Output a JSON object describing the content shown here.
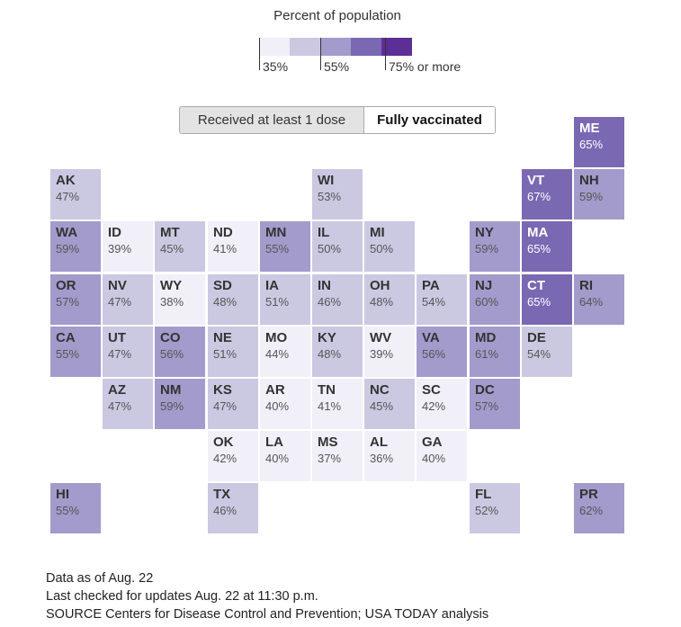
{
  "legend": {
    "title": "Percent of population",
    "colors": [
      "#f1eff7",
      "#cbc8e2",
      "#a29bcb",
      "#7a68b3",
      "#5c2f96"
    ],
    "labels": [
      "35%",
      "55%",
      "75% or more"
    ]
  },
  "toggle": {
    "options": [
      "Received at least 1 dose",
      "Fully vaccinated"
    ],
    "selected": "Fully vaccinated"
  },
  "chart_data": {
    "type": "heatmap",
    "title": "Percent of population",
    "value_unit": "%",
    "color_bins": [
      {
        "range": [
          0,
          45
        ],
        "color": "#f1eff7"
      },
      {
        "range": [
          45,
          55
        ],
        "color": "#cbc8e2"
      },
      {
        "range": [
          55,
          65
        ],
        "color": "#a29bcb"
      },
      {
        "range": [
          65,
          75
        ],
        "color": "#7a68b3"
      },
      {
        "range": [
          75,
          100
        ],
        "color": "#5c2f96"
      }
    ],
    "tiles": [
      {
        "state": "ME",
        "value": 65,
        "row": 0,
        "col": 10
      },
      {
        "state": "AK",
        "value": 47,
        "row": 1,
        "col": 0
      },
      {
        "state": "WI",
        "value": 53,
        "row": 1,
        "col": 5
      },
      {
        "state": "VT",
        "value": 67,
        "row": 1,
        "col": 9
      },
      {
        "state": "NH",
        "value": 59,
        "row": 1,
        "col": 10
      },
      {
        "state": "WA",
        "value": 59,
        "row": 2,
        "col": 0
      },
      {
        "state": "ID",
        "value": 39,
        "row": 2,
        "col": 1
      },
      {
        "state": "MT",
        "value": 45,
        "row": 2,
        "col": 2
      },
      {
        "state": "ND",
        "value": 41,
        "row": 2,
        "col": 3
      },
      {
        "state": "MN",
        "value": 55,
        "row": 2,
        "col": 4
      },
      {
        "state": "IL",
        "value": 50,
        "row": 2,
        "col": 5
      },
      {
        "state": "MI",
        "value": 50,
        "row": 2,
        "col": 6
      },
      {
        "state": "NY",
        "value": 59,
        "row": 2,
        "col": 8
      },
      {
        "state": "MA",
        "value": 65,
        "row": 2,
        "col": 9
      },
      {
        "state": "OR",
        "value": 57,
        "row": 3,
        "col": 0
      },
      {
        "state": "NV",
        "value": 47,
        "row": 3,
        "col": 1
      },
      {
        "state": "WY",
        "value": 38,
        "row": 3,
        "col": 2
      },
      {
        "state": "SD",
        "value": 48,
        "row": 3,
        "col": 3
      },
      {
        "state": "IA",
        "value": 51,
        "row": 3,
        "col": 4
      },
      {
        "state": "IN",
        "value": 46,
        "row": 3,
        "col": 5
      },
      {
        "state": "OH",
        "value": 48,
        "row": 3,
        "col": 6
      },
      {
        "state": "PA",
        "value": 54,
        "row": 3,
        "col": 7
      },
      {
        "state": "NJ",
        "value": 60,
        "row": 3,
        "col": 8
      },
      {
        "state": "CT",
        "value": 65,
        "row": 3,
        "col": 9
      },
      {
        "state": "RI",
        "value": 64,
        "row": 3,
        "col": 10
      },
      {
        "state": "CA",
        "value": 55,
        "row": 4,
        "col": 0
      },
      {
        "state": "UT",
        "value": 47,
        "row": 4,
        "col": 1
      },
      {
        "state": "CO",
        "value": 56,
        "row": 4,
        "col": 2
      },
      {
        "state": "NE",
        "value": 51,
        "row": 4,
        "col": 3
      },
      {
        "state": "MO",
        "value": 44,
        "row": 4,
        "col": 4
      },
      {
        "state": "KY",
        "value": 48,
        "row": 4,
        "col": 5
      },
      {
        "state": "WV",
        "value": 39,
        "row": 4,
        "col": 6
      },
      {
        "state": "VA",
        "value": 56,
        "row": 4,
        "col": 7
      },
      {
        "state": "MD",
        "value": 61,
        "row": 4,
        "col": 8
      },
      {
        "state": "DE",
        "value": 54,
        "row": 4,
        "col": 9
      },
      {
        "state": "AZ",
        "value": 47,
        "row": 5,
        "col": 1
      },
      {
        "state": "NM",
        "value": 59,
        "row": 5,
        "col": 2
      },
      {
        "state": "KS",
        "value": 47,
        "row": 5,
        "col": 3
      },
      {
        "state": "AR",
        "value": 40,
        "row": 5,
        "col": 4
      },
      {
        "state": "TN",
        "value": 41,
        "row": 5,
        "col": 5
      },
      {
        "state": "NC",
        "value": 45,
        "row": 5,
        "col": 6
      },
      {
        "state": "SC",
        "value": 42,
        "row": 5,
        "col": 7
      },
      {
        "state": "DC",
        "value": 57,
        "row": 5,
        "col": 8
      },
      {
        "state": "OK",
        "value": 42,
        "row": 6,
        "col": 3
      },
      {
        "state": "LA",
        "value": 40,
        "row": 6,
        "col": 4
      },
      {
        "state": "MS",
        "value": 37,
        "row": 6,
        "col": 5
      },
      {
        "state": "AL",
        "value": 36,
        "row": 6,
        "col": 6
      },
      {
        "state": "GA",
        "value": 40,
        "row": 6,
        "col": 7
      },
      {
        "state": "HI",
        "value": 55,
        "row": 7,
        "col": 0
      },
      {
        "state": "TX",
        "value": 46,
        "row": 7,
        "col": 3
      },
      {
        "state": "FL",
        "value": 52,
        "row": 7,
        "col": 8
      },
      {
        "state": "PR",
        "value": 62,
        "row": 7,
        "col": 10
      }
    ]
  },
  "footer": {
    "line1": "Data as of Aug. 22",
    "line2": "Last checked for updates Aug. 22 at 11:30 p.m.",
    "line3": "SOURCE Centers for Disease Control and Prevention; USA TODAY analysis"
  }
}
